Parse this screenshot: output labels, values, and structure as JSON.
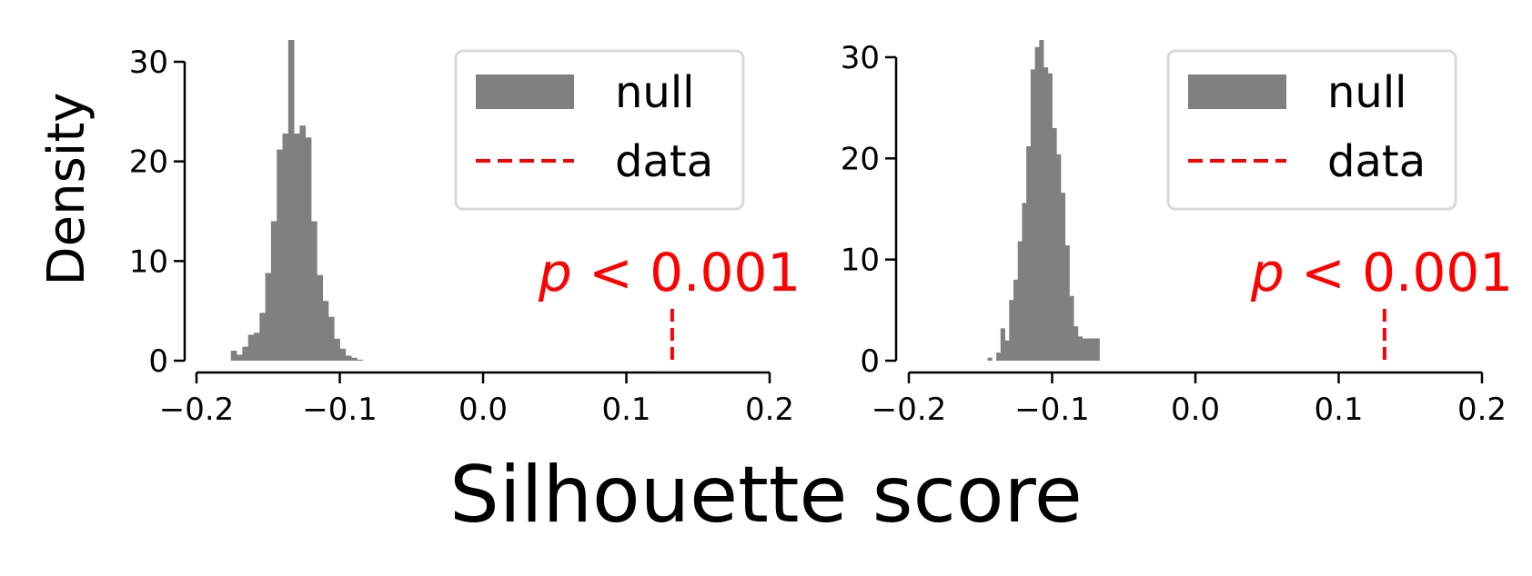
{
  "figure": {
    "ylabel": "Density",
    "xlabel": "Silhouette score"
  },
  "colors": {
    "null": "#808080",
    "data": "#ff0000",
    "axis": "#000000",
    "legend_border": "#d9d9d9"
  },
  "chart_data": [
    {
      "type": "bar",
      "xlim": [
        -0.2,
        0.2
      ],
      "ylim": [
        0,
        30
      ],
      "xticks": [
        "−0.2",
        "−0.1",
        "0.0",
        "0.1",
        "0.2"
      ],
      "xtick_values": [
        -0.2,
        -0.1,
        0.0,
        0.1,
        0.2
      ],
      "yticks": [
        "0",
        "10",
        "20",
        "30"
      ],
      "ytick_values": [
        0,
        10,
        20,
        30
      ],
      "legend": {
        "placement": "top-right",
        "entries": [
          "null",
          "data"
        ]
      },
      "annotation": {
        "prefix": "p",
        "text": " < 0.001"
      },
      "data_value": 0.132,
      "histogram": {
        "bin_edges": [
          -0.176,
          -0.172,
          -0.168,
          -0.164,
          -0.16,
          -0.156,
          -0.152,
          -0.148,
          -0.144,
          -0.14,
          -0.136,
          -0.132,
          -0.128,
          -0.124,
          -0.12,
          -0.116,
          -0.112,
          -0.108,
          -0.104,
          -0.1,
          -0.096,
          -0.092,
          -0.088,
          -0.084
        ],
        "density": [
          1.0,
          0.6,
          1.4,
          2.6,
          2.8,
          4.8,
          8.8,
          14.0,
          21.2,
          22.8,
          33.0,
          22.8,
          23.6,
          22.4,
          14.0,
          8.6,
          6.0,
          4.4,
          2.2,
          1.2,
          0.5,
          0.3,
          0.1
        ]
      }
    },
    {
      "type": "bar",
      "xlim": [
        -0.2,
        0.2
      ],
      "ylim": [
        0,
        30
      ],
      "xticks": [
        "−0.2",
        "−0.1",
        "0.0",
        "0.1",
        "0.2"
      ],
      "xtick_values": [
        -0.2,
        -0.1,
        0.0,
        0.1,
        0.2
      ],
      "yticks": [
        "0",
        "10",
        "20",
        "30"
      ],
      "ytick_values": [
        0,
        10,
        20,
        30
      ],
      "legend": {
        "placement": "top-right",
        "entries": [
          "null",
          "data"
        ]
      },
      "annotation": {
        "prefix": "p",
        "text": " < 0.001"
      },
      "data_value": 0.132,
      "histogram": {
        "bin_edges": [
          -0.145,
          -0.142,
          -0.139,
          -0.136,
          -0.133,
          -0.13,
          -0.127,
          -0.124,
          -0.121,
          -0.118,
          -0.115,
          -0.112,
          -0.109,
          -0.106,
          -0.103,
          -0.1,
          -0.097,
          -0.094,
          -0.091,
          -0.088,
          -0.085,
          -0.082,
          -0.079,
          -0.076,
          -0.073,
          -0.07,
          -0.067
        ],
        "density": [
          0.3,
          0.0,
          0.8,
          3.2,
          2.0,
          6.0,
          8.0,
          11.8,
          15.6,
          21.2,
          28.8,
          31.0,
          34.5,
          29.0,
          28.4,
          23.0,
          20.4,
          16.6,
          11.4,
          6.4,
          3.4,
          2.4,
          2.2,
          2.2,
          2.2,
          2.2
        ]
      }
    }
  ]
}
